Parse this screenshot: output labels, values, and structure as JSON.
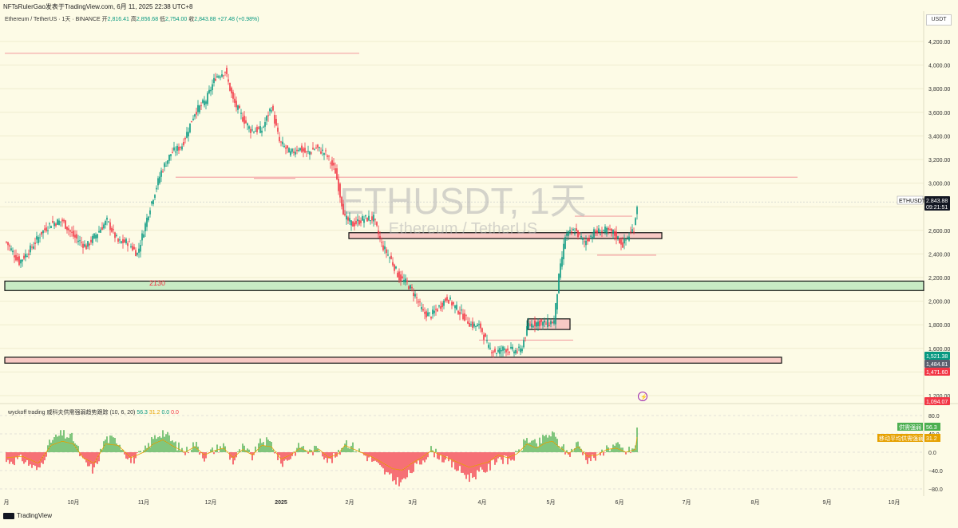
{
  "header": {
    "publisher_line": "NFTsRulerGao发表于TradingView.com, 6月 11, 2025 22:38 UTC+8",
    "symbol_line": "Ethereum / TetherUS · 1天 · BINANCE",
    "open_label": "开",
    "open_value": "2,816.41",
    "high_label": "高",
    "high_value": "2,856.68",
    "low_label": "低",
    "low_value": "2,754.00",
    "close_label": "收",
    "close_value": "2,843.88",
    "change": "+27.48 (+0.98%)",
    "currency": "USDT"
  },
  "watermark": {
    "title": "ETHUSDT, 1天",
    "subtitle": "Ethereum / TetherUS"
  },
  "indicator": {
    "name": "wyckoff trading 威科夫供需强弱趋势跟踪 (10, 6, 20)",
    "v1": "56.3",
    "v2": "31.2",
    "v3": "0.0",
    "v4": "0.0",
    "legend_supply": "供需强弱",
    "legend_supply_value": "56.3",
    "legend_ma": "移动平均供需强弱",
    "legend_ma_value": "31.2"
  },
  "price_tags": {
    "symbol": "ETHUSDT",
    "last": "2,843.88",
    "countdown": "09:21:51",
    "tag1": "1,521.38",
    "tag2": "1,484.81",
    "tag3": "1,471.60",
    "tag4": "1,094.07"
  },
  "annotation_2130": "2130",
  "footer": {
    "brand": "TradingView"
  },
  "colors": {
    "up": "#089981",
    "down": "#f23645",
    "bg": "#fdfbe6",
    "zone_green": "#c8ebc4",
    "zone_red": "#f8c9c4"
  },
  "chart_data": {
    "type": "candlestick",
    "x_ticks": [
      "月",
      "10月",
      "11月",
      "12月",
      "2025",
      "2月",
      "3月",
      "4月",
      "5月",
      "6月",
      "7月",
      "8月",
      "9月",
      "10月"
    ],
    "y_ticks": [
      "4,200.00",
      "4,000.00",
      "3,800.00",
      "3,600.00",
      "3,400.00",
      "3,200.00",
      "3,000.00",
      "2,800.00",
      "2,600.00",
      "2,400.00",
      "2,200.00",
      "2,000.00",
      "1,800.00",
      "1,600.00",
      "1,400.00",
      "1,200.00"
    ],
    "ind_ticks": [
      "80.0",
      "40.0",
      "0.0",
      "−40.0",
      "−80.0"
    ],
    "ylim": [
      1100,
      4300
    ],
    "ind_ylim": [
      -90,
      90
    ],
    "horizontal_lines": [
      {
        "price": 4100,
        "color": "red"
      },
      {
        "price": 3050,
        "color": "red"
      },
      {
        "price": 3040,
        "color": "red"
      },
      {
        "price": 2840,
        "color": "gray"
      }
    ],
    "zones": [
      {
        "low": 2530,
        "high": 2580,
        "type": "box-red"
      },
      {
        "low": 2090,
        "high": 2170,
        "type": "green"
      },
      {
        "low": 1475,
        "high": 1525,
        "type": "red"
      },
      {
        "low": 1760,
        "high": 1850,
        "type": "box"
      }
    ],
    "anchor_closes": [
      [
        0,
        2500
      ],
      [
        8,
        2330
      ],
      [
        15,
        2440
      ],
      [
        22,
        2580
      ],
      [
        28,
        2660
      ],
      [
        35,
        2680
      ],
      [
        42,
        2550
      ],
      [
        50,
        2460
      ],
      [
        57,
        2580
      ],
      [
        63,
        2680
      ],
      [
        70,
        2500
      ],
      [
        76,
        2500
      ],
      [
        82,
        2400
      ],
      [
        90,
        2800
      ],
      [
        97,
        3100
      ],
      [
        103,
        3250
      ],
      [
        110,
        3320
      ],
      [
        118,
        3600
      ],
      [
        125,
        3700
      ],
      [
        131,
        3900
      ],
      [
        137,
        3950
      ],
      [
        142,
        3700
      ],
      [
        148,
        3550
      ],
      [
        153,
        3450
      ],
      [
        160,
        3450
      ],
      [
        166,
        3650
      ],
      [
        171,
        3350
      ],
      [
        178,
        3250
      ],
      [
        183,
        3300
      ],
      [
        188,
        3250
      ],
      [
        194,
        3300
      ],
      [
        200,
        3250
      ],
      [
        206,
        3100
      ],
      [
        212,
        2700
      ],
      [
        217,
        2650
      ],
      [
        224,
        2700
      ],
      [
        230,
        2700
      ],
      [
        235,
        2480
      ],
      [
        241,
        2350
      ],
      [
        246,
        2200
      ],
      [
        251,
        2150
      ],
      [
        256,
        2050
      ],
      [
        261,
        1900
      ],
      [
        266,
        1880
      ],
      [
        271,
        1950
      ],
      [
        276,
        2030
      ],
      [
        281,
        1950
      ],
      [
        286,
        1880
      ],
      [
        291,
        1800
      ],
      [
        297,
        1780
      ],
      [
        302,
        1600
      ],
      [
        307,
        1570
      ],
      [
        312,
        1600
      ],
      [
        317,
        1580
      ],
      [
        322,
        1580
      ],
      [
        327,
        1800
      ],
      [
        333,
        1820
      ],
      [
        338,
        1810
      ],
      [
        343,
        1830
      ],
      [
        346,
        2200
      ],
      [
        350,
        2550
      ],
      [
        356,
        2600
      ],
      [
        362,
        2500
      ],
      [
        368,
        2580
      ],
      [
        374,
        2600
      ],
      [
        380,
        2580
      ],
      [
        386,
        2480
      ],
      [
        390,
        2560
      ],
      [
        393,
        2620
      ],
      [
        395,
        2820
      ]
    ],
    "osc_anchors": [
      [
        0,
        -20
      ],
      [
        10,
        -15
      ],
      [
        20,
        -40
      ],
      [
        28,
        25
      ],
      [
        35,
        40
      ],
      [
        42,
        30
      ],
      [
        48,
        -20
      ],
      [
        55,
        -40
      ],
      [
        62,
        30
      ],
      [
        70,
        25
      ],
      [
        78,
        -20
      ],
      [
        86,
        0
      ],
      [
        92,
        30
      ],
      [
        98,
        45
      ],
      [
        105,
        20
      ],
      [
        112,
        0
      ],
      [
        118,
        20
      ],
      [
        124,
        -10
      ],
      [
        130,
        5
      ],
      [
        136,
        15
      ],
      [
        142,
        -20
      ],
      [
        148,
        10
      ],
      [
        154,
        -10
      ],
      [
        160,
        25
      ],
      [
        166,
        20
      ],
      [
        172,
        -25
      ],
      [
        178,
        -10
      ],
      [
        184,
        15
      ],
      [
        190,
        0
      ],
      [
        196,
        10
      ],
      [
        202,
        -20
      ],
      [
        208,
        -5
      ],
      [
        212,
        25
      ],
      [
        218,
        10
      ],
      [
        224,
        -5
      ],
      [
        230,
        -20
      ],
      [
        236,
        -40
      ],
      [
        242,
        -60
      ],
      [
        248,
        -65
      ],
      [
        254,
        -40
      ],
      [
        260,
        -20
      ],
      [
        266,
        5
      ],
      [
        272,
        -10
      ],
      [
        278,
        -25
      ],
      [
        284,
        -40
      ],
      [
        290,
        -55
      ],
      [
        296,
        -45
      ],
      [
        302,
        -35
      ],
      [
        308,
        -10
      ],
      [
        314,
        -20
      ],
      [
        320,
        -5
      ],
      [
        326,
        30
      ],
      [
        332,
        15
      ],
      [
        338,
        35
      ],
      [
        342,
        40
      ],
      [
        346,
        20
      ],
      [
        352,
        -5
      ],
      [
        358,
        20
      ],
      [
        364,
        -15
      ],
      [
        370,
        -10
      ],
      [
        376,
        10
      ],
      [
        382,
        15
      ],
      [
        388,
        0
      ],
      [
        394,
        10
      ],
      [
        395,
        55
      ]
    ]
  }
}
